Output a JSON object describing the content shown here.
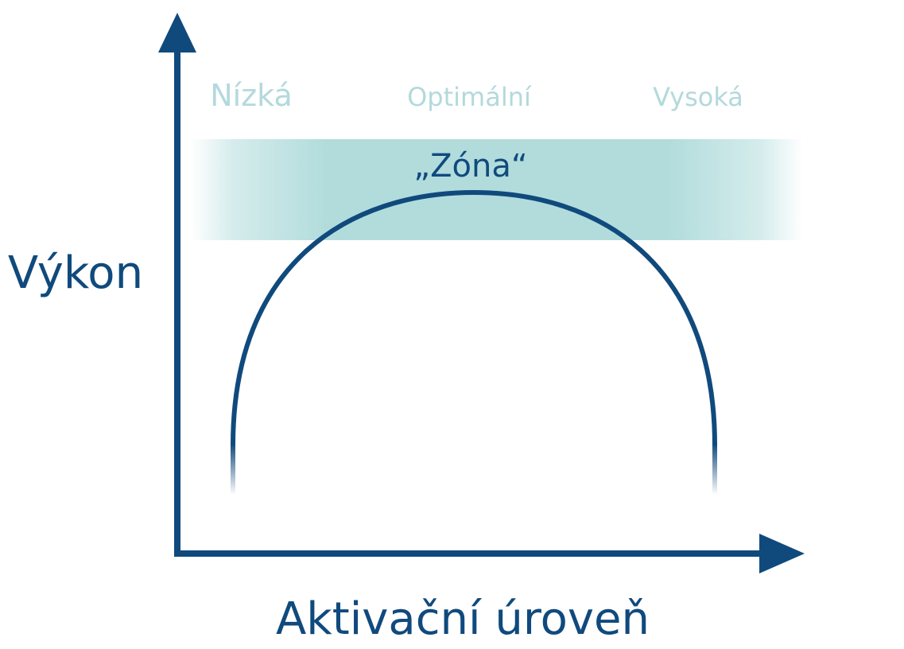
{
  "diagram": {
    "y_axis_label": "Výkon",
    "x_axis_label": "Aktivační úroveň",
    "regions": [
      {
        "label": "Nízká"
      },
      {
        "label": "Optimální"
      },
      {
        "label": "Vysoká"
      }
    ],
    "zone_label": "„Zóna“"
  },
  "colors": {
    "axis": "#104a7d",
    "curve": "#104a7d",
    "dashed_vertical": "#7f9bb8",
    "dashed_horizontal": "#6f8cab",
    "zone_fill": "#b2dcdc",
    "region_label": "#b3d9dc",
    "zone_label": "#104a7d"
  }
}
